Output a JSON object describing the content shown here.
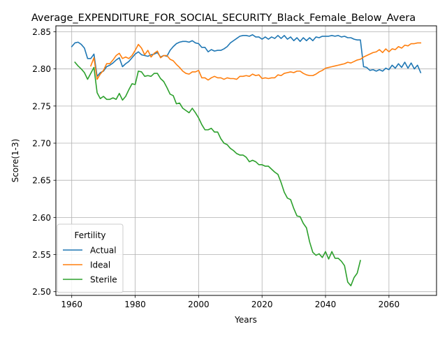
{
  "chart_data": {
    "type": "line",
    "title": "Average_EXPENDITURE_FOR_SOCIAL_SECURITY_Black_Female_Below_Avera",
    "xlabel": "Years",
    "ylabel": "Score(1-3)",
    "xlim": [
      1955,
      2075
    ],
    "ylim": [
      2.495,
      2.858
    ],
    "xticks": [
      1960,
      1980,
      2000,
      2020,
      2040,
      2060
    ],
    "yticks": [
      2.5,
      2.55,
      2.6,
      2.65,
      2.7,
      2.75,
      2.8,
      2.85
    ],
    "ytick_labels": [
      "2.50",
      "2.55",
      "2.60",
      "2.65",
      "2.70",
      "2.75",
      "2.80",
      "2.85"
    ],
    "grid": true,
    "legend": {
      "title": "Fertility",
      "placement": "lower-left"
    },
    "series": [
      {
        "name": "Actual",
        "color": "#1f77b4",
        "points": [
          [
            1960,
            2.83
          ],
          [
            1961,
            2.835
          ],
          [
            1962,
            2.836
          ],
          [
            1963,
            2.833
          ],
          [
            1964,
            2.828
          ],
          [
            1965,
            2.814
          ],
          [
            1966,
            2.814
          ],
          [
            1967,
            2.82
          ],
          [
            1968,
            2.79
          ],
          [
            1969,
            2.795
          ],
          [
            1970,
            2.797
          ],
          [
            1971,
            2.803
          ],
          [
            1972,
            2.805
          ],
          [
            1973,
            2.808
          ],
          [
            1974,
            2.812
          ],
          [
            1975,
            2.815
          ],
          [
            1976,
            2.803
          ],
          [
            1977,
            2.807
          ],
          [
            1978,
            2.81
          ],
          [
            1979,
            2.815
          ],
          [
            1980,
            2.82
          ],
          [
            1981,
            2.823
          ],
          [
            1982,
            2.819
          ],
          [
            1983,
            2.818
          ],
          [
            1984,
            2.817
          ],
          [
            1985,
            2.819
          ],
          [
            1986,
            2.82
          ],
          [
            1987,
            2.822
          ],
          [
            1988,
            2.816
          ],
          [
            1989,
            2.818
          ],
          [
            1990,
            2.817
          ],
          [
            1991,
            2.825
          ],
          [
            1992,
            2.83
          ],
          [
            1993,
            2.834
          ],
          [
            1994,
            2.836
          ],
          [
            1995,
            2.837
          ],
          [
            1996,
            2.837
          ],
          [
            1997,
            2.836
          ],
          [
            1998,
            2.838
          ],
          [
            1999,
            2.835
          ],
          [
            2000,
            2.834
          ],
          [
            2001,
            2.829
          ],
          [
            2002,
            2.829
          ],
          [
            2003,
            2.823
          ],
          [
            2004,
            2.826
          ],
          [
            2005,
            2.824
          ],
          [
            2006,
            2.825
          ],
          [
            2007,
            2.825
          ],
          [
            2008,
            2.827
          ],
          [
            2009,
            2.83
          ],
          [
            2010,
            2.835
          ],
          [
            2011,
            2.838
          ],
          [
            2012,
            2.841
          ],
          [
            2013,
            2.844
          ],
          [
            2014,
            2.845
          ],
          [
            2015,
            2.845
          ],
          [
            2016,
            2.844
          ],
          [
            2017,
            2.846
          ],
          [
            2018,
            2.843
          ],
          [
            2019,
            2.843
          ],
          [
            2020,
            2.84
          ],
          [
            2021,
            2.843
          ],
          [
            2022,
            2.84
          ],
          [
            2023,
            2.843
          ],
          [
            2024,
            2.841
          ],
          [
            2025,
            2.845
          ],
          [
            2026,
            2.841
          ],
          [
            2027,
            2.845
          ],
          [
            2028,
            2.84
          ],
          [
            2029,
            2.843
          ],
          [
            2030,
            2.838
          ],
          [
            2031,
            2.842
          ],
          [
            2032,
            2.837
          ],
          [
            2033,
            2.842
          ],
          [
            2034,
            2.838
          ],
          [
            2035,
            2.842
          ],
          [
            2036,
            2.838
          ],
          [
            2037,
            2.843
          ],
          [
            2038,
            2.842
          ],
          [
            2039,
            2.844
          ],
          [
            2040,
            2.844
          ],
          [
            2041,
            2.844
          ],
          [
            2042,
            2.845
          ],
          [
            2043,
            2.844
          ],
          [
            2044,
            2.845
          ],
          [
            2045,
            2.843
          ],
          [
            2046,
            2.844
          ],
          [
            2047,
            2.842
          ],
          [
            2048,
            2.842
          ],
          [
            2049,
            2.84
          ],
          [
            2050,
            2.839
          ],
          [
            2051,
            2.839
          ],
          [
            2052,
            2.803
          ],
          [
            2053,
            2.802
          ],
          [
            2054,
            2.798
          ],
          [
            2055,
            2.799
          ],
          [
            2056,
            2.797
          ],
          [
            2057,
            2.799
          ],
          [
            2058,
            2.797
          ],
          [
            2059,
            2.801
          ],
          [
            2060,
            2.799
          ],
          [
            2061,
            2.805
          ],
          [
            2062,
            2.801
          ],
          [
            2063,
            2.807
          ],
          [
            2064,
            2.802
          ],
          [
            2065,
            2.809
          ],
          [
            2066,
            2.801
          ],
          [
            2067,
            2.808
          ],
          [
            2068,
            2.8
          ],
          [
            2069,
            2.805
          ],
          [
            2070,
            2.795
          ]
        ]
      },
      {
        "name": "Ideal",
        "color": "#ff7f0e",
        "points": [
          [
            1966,
            2.804
          ],
          [
            1967,
            2.815
          ],
          [
            1968,
            2.786
          ],
          [
            1969,
            2.793
          ],
          [
            1970,
            2.798
          ],
          [
            1971,
            2.807
          ],
          [
            1972,
            2.807
          ],
          [
            1973,
            2.812
          ],
          [
            1974,
            2.818
          ],
          [
            1975,
            2.821
          ],
          [
            1976,
            2.814
          ],
          [
            1977,
            2.816
          ],
          [
            1978,
            2.814
          ],
          [
            1979,
            2.818
          ],
          [
            1980,
            2.825
          ],
          [
            1981,
            2.833
          ],
          [
            1982,
            2.828
          ],
          [
            1983,
            2.819
          ],
          [
            1984,
            2.825
          ],
          [
            1985,
            2.816
          ],
          [
            1986,
            2.821
          ],
          [
            1987,
            2.824
          ],
          [
            1988,
            2.815
          ],
          [
            1989,
            2.818
          ],
          [
            1990,
            2.818
          ],
          [
            1991,
            2.813
          ],
          [
            1992,
            2.811
          ],
          [
            1993,
            2.806
          ],
          [
            1994,
            2.802
          ],
          [
            1995,
            2.797
          ],
          [
            1996,
            2.794
          ],
          [
            1997,
            2.793
          ],
          [
            1998,
            2.796
          ],
          [
            1999,
            2.796
          ],
          [
            2000,
            2.798
          ],
          [
            2001,
            2.788
          ],
          [
            2002,
            2.788
          ],
          [
            2003,
            2.785
          ],
          [
            2004,
            2.788
          ],
          [
            2005,
            2.79
          ],
          [
            2006,
            2.788
          ],
          [
            2007,
            2.788
          ],
          [
            2008,
            2.786
          ],
          [
            2009,
            2.788
          ],
          [
            2010,
            2.787
          ],
          [
            2011,
            2.787
          ],
          [
            2012,
            2.786
          ],
          [
            2013,
            2.79
          ],
          [
            2014,
            2.79
          ],
          [
            2015,
            2.791
          ],
          [
            2016,
            2.79
          ],
          [
            2017,
            2.793
          ],
          [
            2018,
            2.791
          ],
          [
            2019,
            2.792
          ],
          [
            2020,
            2.787
          ],
          [
            2021,
            2.788
          ],
          [
            2022,
            2.787
          ],
          [
            2023,
            2.788
          ],
          [
            2024,
            2.788
          ],
          [
            2025,
            2.792
          ],
          [
            2026,
            2.791
          ],
          [
            2027,
            2.794
          ],
          [
            2028,
            2.795
          ],
          [
            2029,
            2.796
          ],
          [
            2030,
            2.795
          ],
          [
            2031,
            2.797
          ],
          [
            2032,
            2.797
          ],
          [
            2033,
            2.794
          ],
          [
            2034,
            2.792
          ],
          [
            2035,
            2.791
          ],
          [
            2036,
            2.791
          ],
          [
            2037,
            2.793
          ],
          [
            2038,
            2.796
          ],
          [
            2039,
            2.798
          ],
          [
            2040,
            2.801
          ],
          [
            2041,
            2.802
          ],
          [
            2042,
            2.803
          ],
          [
            2043,
            2.804
          ],
          [
            2044,
            2.805
          ],
          [
            2045,
            2.806
          ],
          [
            2046,
            2.807
          ],
          [
            2047,
            2.809
          ],
          [
            2048,
            2.808
          ],
          [
            2049,
            2.81
          ],
          [
            2050,
            2.812
          ],
          [
            2051,
            2.813
          ],
          [
            2052,
            2.816
          ],
          [
            2053,
            2.818
          ],
          [
            2054,
            2.82
          ],
          [
            2055,
            2.822
          ],
          [
            2056,
            2.823
          ],
          [
            2057,
            2.826
          ],
          [
            2058,
            2.822
          ],
          [
            2059,
            2.827
          ],
          [
            2060,
            2.823
          ],
          [
            2061,
            2.827
          ],
          [
            2062,
            2.826
          ],
          [
            2063,
            2.83
          ],
          [
            2064,
            2.828
          ],
          [
            2065,
            2.832
          ],
          [
            2066,
            2.831
          ],
          [
            2067,
            2.834
          ],
          [
            2068,
            2.834
          ],
          [
            2069,
            2.835
          ],
          [
            2070,
            2.835
          ]
        ]
      },
      {
        "name": "Sterile",
        "color": "#2ca02c",
        "points": [
          [
            1961,
            2.809
          ],
          [
            1962,
            2.804
          ],
          [
            1963,
            2.8
          ],
          [
            1964,
            2.795
          ],
          [
            1965,
            2.786
          ],
          [
            1966,
            2.794
          ],
          [
            1967,
            2.802
          ],
          [
            1968,
            2.768
          ],
          [
            1969,
            2.76
          ],
          [
            1970,
            2.763
          ],
          [
            1971,
            2.759
          ],
          [
            1972,
            2.759
          ],
          [
            1973,
            2.761
          ],
          [
            1974,
            2.759
          ],
          [
            1975,
            2.767
          ],
          [
            1976,
            2.758
          ],
          [
            1977,
            2.763
          ],
          [
            1978,
            2.772
          ],
          [
            1979,
            2.78
          ],
          [
            1980,
            2.779
          ],
          [
            1981,
            2.797
          ],
          [
            1982,
            2.796
          ],
          [
            1983,
            2.79
          ],
          [
            1984,
            2.791
          ],
          [
            1985,
            2.79
          ],
          [
            1986,
            2.794
          ],
          [
            1987,
            2.794
          ],
          [
            1988,
            2.787
          ],
          [
            1989,
            2.783
          ],
          [
            1990,
            2.775
          ],
          [
            1991,
            2.766
          ],
          [
            1992,
            2.764
          ],
          [
            1993,
            2.753
          ],
          [
            1994,
            2.754
          ],
          [
            1995,
            2.747
          ],
          [
            1996,
            2.744
          ],
          [
            1997,
            2.741
          ],
          [
            1998,
            2.747
          ],
          [
            1999,
            2.741
          ],
          [
            2000,
            2.734
          ],
          [
            2001,
            2.725
          ],
          [
            2002,
            2.718
          ],
          [
            2003,
            2.718
          ],
          [
            2004,
            2.72
          ],
          [
            2005,
            2.715
          ],
          [
            2006,
            2.715
          ],
          [
            2007,
            2.706
          ],
          [
            2008,
            2.7
          ],
          [
            2009,
            2.698
          ],
          [
            2010,
            2.693
          ],
          [
            2011,
            2.69
          ],
          [
            2012,
            2.686
          ],
          [
            2013,
            2.684
          ],
          [
            2014,
            2.684
          ],
          [
            2015,
            2.681
          ],
          [
            2016,
            2.675
          ],
          [
            2017,
            2.677
          ],
          [
            2018,
            2.675
          ],
          [
            2019,
            2.671
          ],
          [
            2020,
            2.671
          ],
          [
            2021,
            2.669
          ],
          [
            2022,
            2.669
          ],
          [
            2023,
            2.665
          ],
          [
            2024,
            2.661
          ],
          [
            2025,
            2.658
          ],
          [
            2026,
            2.647
          ],
          [
            2027,
            2.634
          ],
          [
            2028,
            2.626
          ],
          [
            2029,
            2.624
          ],
          [
            2030,
            2.612
          ],
          [
            2031,
            2.602
          ],
          [
            2032,
            2.601
          ],
          [
            2033,
            2.592
          ],
          [
            2034,
            2.586
          ],
          [
            2035,
            2.567
          ],
          [
            2036,
            2.553
          ],
          [
            2037,
            2.549
          ],
          [
            2038,
            2.551
          ],
          [
            2039,
            2.546
          ],
          [
            2040,
            2.554
          ],
          [
            2041,
            2.544
          ],
          [
            2042,
            2.554
          ],
          [
            2043,
            2.545
          ],
          [
            2044,
            2.545
          ],
          [
            2045,
            2.541
          ],
          [
            2046,
            2.535
          ],
          [
            2047,
            2.513
          ],
          [
            2048,
            2.508
          ],
          [
            2049,
            2.519
          ],
          [
            2050,
            2.525
          ],
          [
            2051,
            2.542
          ]
        ]
      }
    ]
  }
}
